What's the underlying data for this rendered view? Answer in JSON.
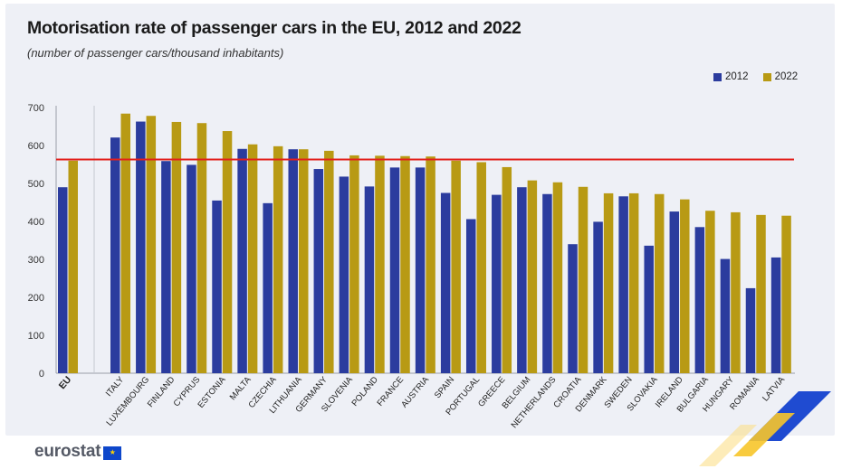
{
  "header": {
    "title": "Motorisation rate of passenger cars in the EU, 2012 and 2022",
    "subtitle": "(number of passenger cars/thousand inhabitants)"
  },
  "legend": [
    {
      "label": "2012",
      "color": "#2b3c9e"
    },
    {
      "label": "2022",
      "color": "#b89a14"
    }
  ],
  "footer": {
    "logo_text": "eurostat"
  },
  "chart_data": {
    "type": "bar",
    "title": "Motorisation rate of passenger cars in the EU, 2012 and 2022",
    "subtitle": "(number of passenger cars/thousand inhabitants)",
    "ylim": [
      0,
      700
    ],
    "yticks": [
      0,
      100,
      200,
      300,
      400,
      500,
      600,
      700
    ],
    "grid": false,
    "legend_position": "top-right",
    "reference_line": {
      "value": 563,
      "color": "#e2201c"
    },
    "categories": [
      "EU",
      "ITALY",
      "LUXEMBOURG",
      "FINLAND",
      "CYPRUS",
      "ESTONIA",
      "MALTA",
      "CZECHIA",
      "LITHUANIA",
      "GERMANY",
      "SLOVENIA",
      "POLAND",
      "FRANCE",
      "AUSTRIA",
      "SPAIN",
      "PORTUGAL",
      "GREECE",
      "BELGIUM",
      "NETHERLANDS",
      "CROATIA",
      "DENMARK",
      "SWEDEN",
      "SLOVAKIA",
      "IRELAND",
      "BULGARIA",
      "HUNGARY",
      "ROMANIA",
      "LATVIA"
    ],
    "series": [
      {
        "name": "2012",
        "color": "#2b3c9e",
        "values": [
          490,
          621,
          663,
          559,
          549,
          455,
          591,
          448,
          590,
          538,
          518,
          492,
          542,
          542,
          475,
          406,
          470,
          490,
          472,
          340,
          399,
          466,
          336,
          426,
          385,
          301,
          224,
          305
        ]
      },
      {
        "name": "2022",
        "color": "#b89a14",
        "values": [
          560,
          684,
          678,
          662,
          659,
          638,
          603,
          598,
          590,
          586,
          574,
          573,
          572,
          571,
          560,
          556,
          543,
          508,
          503,
          491,
          474,
          474,
          472,
          458,
          428,
          424,
          417,
          415
        ]
      }
    ]
  }
}
